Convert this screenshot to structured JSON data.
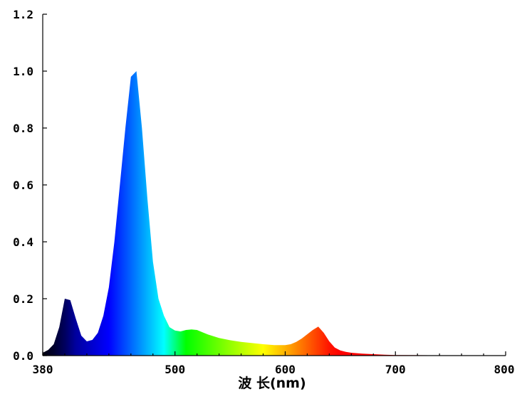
{
  "chart_data": {
    "type": "area",
    "title": "",
    "xlabel": "波 长(nm)",
    "ylabel": "",
    "xlim": [
      380,
      800
    ],
    "ylim": [
      0,
      1.2
    ],
    "xticks": [
      380,
      500,
      600,
      700,
      800
    ],
    "xtick_labels": [
      "380",
      "500",
      "600",
      "700",
      "800"
    ],
    "yticks": [
      0,
      0.2,
      0.4,
      0.6,
      0.8,
      1.0,
      1.2
    ],
    "ytick_labels": [
      "0.0",
      "0.2",
      "0.4",
      "0.6",
      "0.8",
      "1.0",
      "1.2"
    ],
    "grid": false,
    "legend": "none",
    "fill": "visible-spectrum gradient by wavelength",
    "x": [
      380,
      385,
      390,
      395,
      400,
      405,
      410,
      415,
      420,
      425,
      430,
      435,
      440,
      445,
      450,
      455,
      460,
      465,
      470,
      475,
      480,
      485,
      490,
      495,
      500,
      505,
      510,
      515,
      520,
      525,
      530,
      540,
      550,
      560,
      570,
      580,
      590,
      600,
      605,
      610,
      615,
      620,
      625,
      630,
      635,
      640,
      645,
      650,
      655,
      660,
      670,
      680,
      690,
      700,
      720,
      740,
      760,
      780,
      800
    ],
    "values": [
      0.01,
      0.02,
      0.04,
      0.1,
      0.2,
      0.195,
      0.13,
      0.07,
      0.05,
      0.055,
      0.08,
      0.14,
      0.24,
      0.4,
      0.6,
      0.8,
      0.98,
      1.0,
      0.8,
      0.55,
      0.33,
      0.2,
      0.14,
      0.1,
      0.088,
      0.085,
      0.09,
      0.092,
      0.09,
      0.082,
      0.074,
      0.062,
      0.054,
      0.048,
      0.044,
      0.04,
      0.037,
      0.037,
      0.04,
      0.048,
      0.06,
      0.075,
      0.09,
      0.102,
      0.08,
      0.05,
      0.028,
      0.018,
      0.013,
      0.01,
      0.007,
      0.005,
      0.003,
      0.002,
      0.0015,
      0.001,
      0.0008,
      0.0005,
      0.0004
    ]
  }
}
